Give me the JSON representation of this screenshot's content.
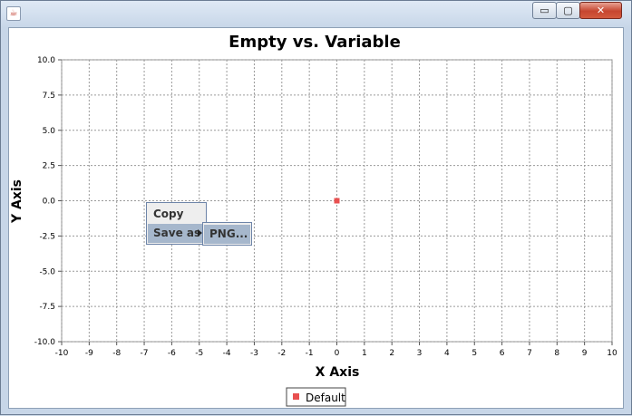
{
  "window": {
    "icon": "java-cup-icon",
    "controls": {
      "minimize": "▭",
      "maximize": "▢",
      "close": "✕"
    }
  },
  "chart_data": {
    "type": "scatter",
    "title": "Empty vs. Variable",
    "xlabel": "X Axis",
    "ylabel": "Y Axis",
    "xlim": [
      -10,
      10
    ],
    "ylim": [
      -10,
      10
    ],
    "grid": true,
    "x_ticks": [
      "-10",
      "-9",
      "-8",
      "-7",
      "-6",
      "-5",
      "-4",
      "-3",
      "-2",
      "-1",
      "0",
      "1",
      "2",
      "3",
      "4",
      "5",
      "6",
      "7",
      "8",
      "9",
      "10"
    ],
    "y_ticks": [
      "10.0",
      "7.5",
      "5.0",
      "2.5",
      "0.0",
      "-2.5",
      "-5.0",
      "-7.5",
      "-10.0"
    ],
    "series": [
      {
        "name": "Default",
        "color": "#e85050",
        "points": [
          {
            "x": 0,
            "y": 0
          }
        ]
      }
    ],
    "legend": {
      "position": "bottom",
      "entries": [
        "Default"
      ]
    }
  },
  "context_menu": {
    "items": [
      "Copy",
      "Save as"
    ],
    "submenu": {
      "items": [
        "PNG..."
      ]
    }
  }
}
